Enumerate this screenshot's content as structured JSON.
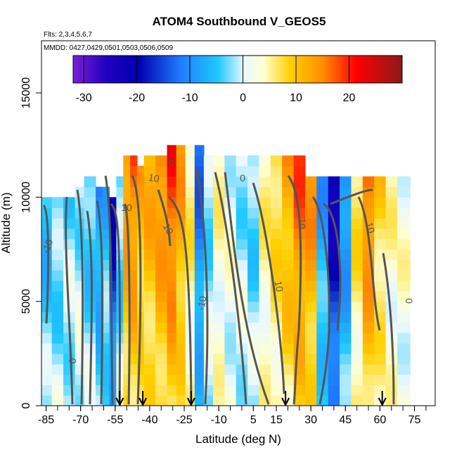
{
  "chart_data": {
    "type": "heatmap",
    "title": "ATOM4 Southbound V_GEOS5",
    "notes": [
      "Flts: 2,3,4,5,6,7",
      "MMDD: 0427,0429,0501,0503,0506,0509"
    ],
    "xlabel": "Latitude (deg N)",
    "ylabel": "Altitude (m)",
    "xlim": [
      -87,
      84
    ],
    "ylim": [
      0,
      17500
    ],
    "x_ticks": [
      "-85",
      "-70",
      "-55",
      "-40",
      "-25",
      "-10",
      "5",
      "15",
      "30",
      "45",
      "60",
      "75"
    ],
    "x_tick_values": [
      -85,
      -70,
      -55,
      -40,
      -25,
      -10,
      5,
      15,
      30,
      45,
      60,
      75
    ],
    "y_ticks": [
      "0",
      "5000",
      "10000",
      "15000"
    ],
    "y_tick_values": [
      0,
      5000,
      10000,
      15000
    ],
    "colorbar": {
      "min": -32,
      "max": 30,
      "tick_labels": [
        "-30",
        "-20",
        "-10",
        "0",
        "10",
        "20"
      ],
      "tick_values": [
        -30,
        -20,
        -10,
        0,
        10,
        20
      ],
      "colors": [
        "#7a1fd6",
        "#0000b0",
        "#1f5fff",
        "#1fc0ff",
        "#dff6ff",
        "#ffffd0",
        "#ffd000",
        "#ff8000",
        "#ff0000",
        "#8b1a1a"
      ]
    },
    "contour_labels": [
      "0",
      "10",
      "-10"
    ],
    "sounding_markers": [
      -53,
      -43,
      -22,
      19,
      61
    ],
    "columns": [
      {
        "x": -85,
        "top": 10000,
        "v": -6
      },
      {
        "x": -80,
        "top": 10000,
        "v": -4
      },
      {
        "x": -75,
        "top": 10000,
        "v": -3
      },
      {
        "x": -70,
        "top": 10500,
        "v": -2
      },
      {
        "x": -66,
        "top": 11000,
        "v": -5
      },
      {
        "x": -61,
        "top": 10500,
        "v": -9
      },
      {
        "x": -58,
        "top": 10500,
        "v": -6
      },
      {
        "x": -55,
        "top": 10000,
        "v": -18
      },
      {
        "x": -52,
        "top": 11000,
        "v": -4
      },
      {
        "x": -49,
        "top": 12000,
        "v": 12
      },
      {
        "x": -46,
        "top": 12000,
        "v": 14
      },
      {
        "x": -43,
        "top": 11500,
        "v": 9
      },
      {
        "x": -40,
        "top": 12000,
        "v": 10
      },
      {
        "x": -35,
        "top": 12000,
        "v": 13
      },
      {
        "x": -30,
        "top": 12500,
        "v": 17
      },
      {
        "x": -26,
        "top": 12500,
        "v": 11
      },
      {
        "x": -22,
        "top": 12500,
        "v": 4
      },
      {
        "x": -18,
        "top": 12500,
        "v": -12
      },
      {
        "x": -14,
        "top": 12000,
        "v": -3
      },
      {
        "x": -10,
        "top": 12000,
        "v": 2
      },
      {
        "x": -5,
        "top": 12000,
        "v": 0
      },
      {
        "x": 0,
        "top": 12000,
        "v": -2
      },
      {
        "x": 5,
        "top": 12000,
        "v": -4
      },
      {
        "x": 10,
        "top": 12000,
        "v": 3
      },
      {
        "x": 15,
        "top": 12000,
        "v": 6
      },
      {
        "x": 20,
        "top": 12000,
        "v": 10
      },
      {
        "x": 25,
        "top": 12000,
        "v": 15
      },
      {
        "x": 30,
        "top": 11000,
        "v": 12
      },
      {
        "x": 35,
        "top": 11000,
        "v": -8
      },
      {
        "x": 40,
        "top": 11000,
        "v": -22
      },
      {
        "x": 45,
        "top": 11000,
        "v": -10
      },
      {
        "x": 50,
        "top": 11000,
        "v": 5
      },
      {
        "x": 55,
        "top": 11000,
        "v": 14
      },
      {
        "x": 60,
        "top": 11000,
        "v": 6
      },
      {
        "x": 65,
        "top": 11000,
        "v": 2
      },
      {
        "x": 70,
        "top": 11000,
        "v": 1
      }
    ]
  }
}
